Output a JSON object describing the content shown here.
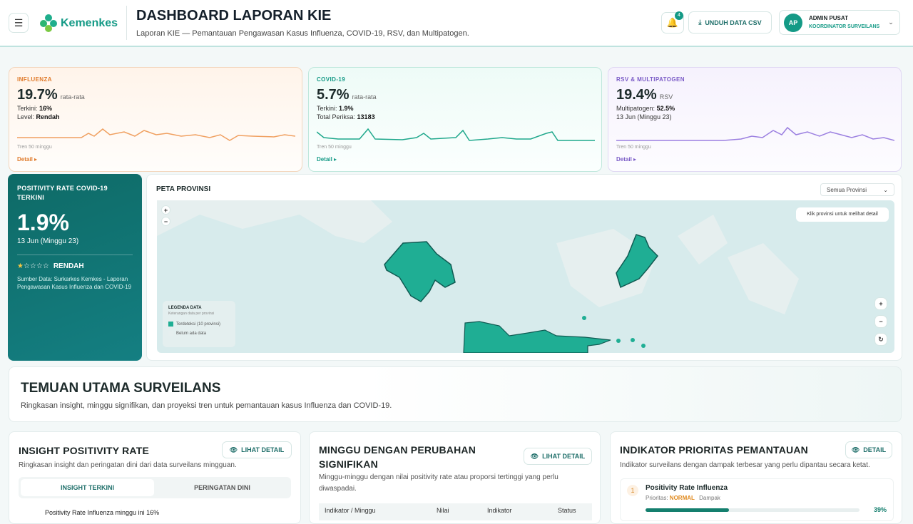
{
  "header": {
    "logo": "Kemenkes",
    "title": "DASHBOARD LAPORAN KIE",
    "subtitle": "Laporan KIE — Pemantauan Pengawasan Kasus Influenza, COVID-19, RSV, dan Multipatogen.",
    "notification_count": "4",
    "download_button": "UNDUH DATA CSV",
    "user": {
      "initials": "AP",
      "name": "ADMIN PUSAT",
      "role": "KOORDINATOR SURVEILANS"
    }
  },
  "cards": [
    {
      "label": "INFLUENZA",
      "value": "19.7%",
      "value_note": "rata-rata",
      "line1_key": "Terkini:",
      "line1_value": "16%",
      "line2_key": "Level:",
      "line2_value": "Rendah",
      "trend": "Tren 50 minggu",
      "link": "Detail ▸"
    },
    {
      "label": "COVID-19",
      "value": "5.7%",
      "value_note": "rata-rata",
      "line1_key": "Terkini:",
      "line1_value": "1.9%",
      "line2_key": "Total Periksa:",
      "line2_value": "13183",
      "trend": "Tren 50 minggu",
      "link": "Detail ▸"
    },
    {
      "label": "RSV & MULTIPATOGEN",
      "value": "19.4%",
      "value_note": "RSV",
      "line1_key": "Multipatogen:",
      "line1_value": "52.5%",
      "line2_key": "",
      "line2_value": "13 Jun (Minggu 23)",
      "trend": "Tren 50 minggu",
      "link": "Detail ▸"
    }
  ],
  "positivity": {
    "title": "POSITIVITY RATE COVID-19 TERKINI",
    "value": "1.9%",
    "date": "13 Jun (Minggu 23)",
    "level": "RENDAH",
    "source": "Sumber Data: Surkarkes Kemkes - Laporan Pengawasan Kasus Influenza dan COVID-19"
  },
  "map": {
    "title": "PETA PROVINSI",
    "select": "Semua Provinsi",
    "hint": "Klik provinsi untuk melihat detail",
    "legend_title": "LEGENDA DATA",
    "legend_subtitle": "Keterangan data per provinsi",
    "legend_detected": "Terdeteksi (10 provinsi)",
    "legend_none": "Belum ada data"
  },
  "findings": {
    "title": "TEMUAN UTAMA SURVEILANS",
    "subtitle": "Ringkasan insight, minggu signifikan, dan proyeksi tren untuk pemantauan kasus Influenza dan COVID-19."
  },
  "panels": {
    "insight": {
      "title": "INSIGHT POSITIVITY RATE",
      "button": "LIHAT DETAIL",
      "subtitle": "Ringkasan insight dan peringatan dini dari data surveilans mingguan.",
      "tabs": [
        "INSIGHT TERKINI",
        "PERINGATAN DINI"
      ],
      "first_item": "Positivity Rate Influenza minggu ini 16%"
    },
    "weeks": {
      "title": "MINGGU DENGAN PERUBAHAN SIGNIFIKAN",
      "button": "LIHAT DETAIL",
      "subtitle": "Minggu-minggu dengan nilai positivity rate atau proporsi tertinggi yang perlu diwaspadai.",
      "columns": [
        "Indikator / Minggu",
        "Nilai",
        "Indikator",
        "Status"
      ]
    },
    "priority": {
      "title": "INDIKATOR PRIORITAS PEMANTAUAN",
      "button": "DETAIL",
      "subtitle": "Indikator surveilans dengan dampak terbesar yang perlu dipantau secara ketat.",
      "items": [
        {
          "rank": "1",
          "name": "Positivity Rate Influenza",
          "priority_key": "Prioritas:",
          "priority": "NORMAL",
          "impact_key": "Dampak",
          "impact": {
            "value": 39,
            "label": "39%"
          }
        }
      ]
    }
  }
}
